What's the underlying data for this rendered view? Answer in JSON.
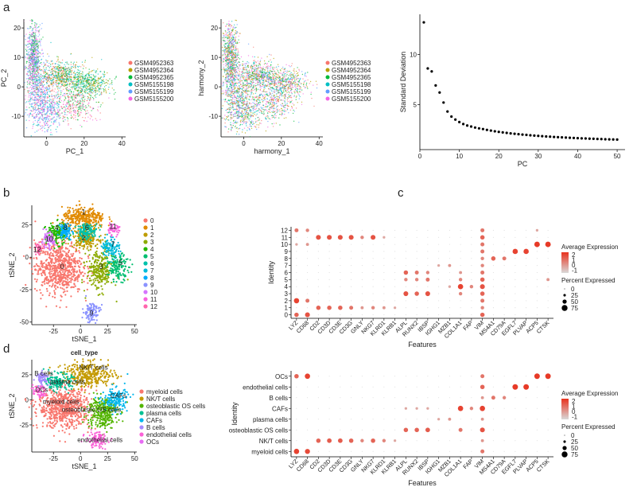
{
  "panel_letters": [
    "a",
    "b",
    "c",
    "d"
  ],
  "colors": {
    "samples": [
      "#F8766D",
      "#B79F00",
      "#00BA38",
      "#00BFC4",
      "#619CFF",
      "#F564E3"
    ],
    "clusters": [
      "#F8766D",
      "#E18A00",
      "#BE9C00",
      "#8CAB00",
      "#24B700",
      "#00BE70",
      "#00C1AB",
      "#00BBDA",
      "#00ACFC",
      "#8B93FF",
      "#D575FE",
      "#F962DD",
      "#FF65AC"
    ],
    "celltypes": [
      "#F8766D",
      "#C49A00",
      "#53B400",
      "#00C094",
      "#00B6EB",
      "#A58AFF",
      "#FB61D7"
    ],
    "expr_low": "#d9d9d9",
    "expr_high": "#e8321e"
  },
  "chart_data": [
    {
      "id": "pca",
      "type": "scatter",
      "xlabel": "PC_1",
      "ylabel": "PC_2",
      "xlim": [
        -12,
        42
      ],
      "ylim": [
        -17,
        23
      ],
      "xticks": [
        "0",
        "20",
        "40"
      ],
      "yticks": [
        "20",
        "10",
        "0",
        "-10"
      ],
      "legend": [
        "GSM4952363",
        "GSM4952364",
        "GSM4952365",
        "GSM5155198",
        "GSM5155199",
        "GSM5155200"
      ]
    },
    {
      "id": "harmony",
      "type": "scatter",
      "xlabel": "harmony_1",
      "ylabel": "harmony_2",
      "xlim": [
        -12,
        42
      ],
      "ylim": [
        -17,
        23
      ],
      "xticks": [
        "0",
        "20",
        "40"
      ],
      "yticks": [
        "20",
        "10",
        "0",
        "-10"
      ],
      "legend": [
        "GSM4952363",
        "GSM4952364",
        "GSM4952365",
        "GSM5155198",
        "GSM5155199",
        "GSM5155200"
      ]
    },
    {
      "id": "elbow",
      "type": "scatter",
      "xlabel": "PC",
      "ylabel": "Standard Deviation",
      "xlim": [
        0,
        52
      ],
      "ylim": [
        0.5,
        14
      ],
      "xticks": [
        "0",
        "10",
        "20",
        "30",
        "40",
        "50"
      ],
      "yticks": [
        "10",
        "5"
      ],
      "x": [
        1,
        2,
        3,
        4,
        5,
        6,
        7,
        8,
        9,
        10,
        11,
        12,
        13,
        14,
        15,
        16,
        17,
        18,
        19,
        20,
        21,
        22,
        23,
        24,
        25,
        26,
        27,
        28,
        29,
        30,
        31,
        32,
        33,
        34,
        35,
        36,
        37,
        38,
        39,
        40,
        41,
        42,
        43,
        44,
        45,
        46,
        47,
        48,
        49,
        50
      ],
      "y": [
        13.2,
        8.6,
        8.3,
        6.9,
        6.2,
        5.2,
        4.3,
        3.8,
        3.5,
        3.25,
        3.05,
        2.9,
        2.8,
        2.7,
        2.62,
        2.55,
        2.47,
        2.4,
        2.33,
        2.27,
        2.22,
        2.17,
        2.12,
        2.08,
        2.04,
        2.0,
        1.97,
        1.93,
        1.9,
        1.87,
        1.84,
        1.81,
        1.79,
        1.76,
        1.74,
        1.72,
        1.7,
        1.68,
        1.66,
        1.64,
        1.62,
        1.61,
        1.59,
        1.58,
        1.56,
        1.55,
        1.53,
        1.52,
        1.51,
        1.5
      ]
    },
    {
      "id": "tsne_clusters",
      "type": "scatter",
      "xlabel": "tSNE_1",
      "ylabel": "tSNE_2",
      "xlim": [
        -45,
        52
      ],
      "ylim": [
        -52,
        40
      ],
      "xticks": [
        "-25",
        "0",
        "25",
        "50"
      ],
      "yticks": [
        "25",
        "0",
        "-25",
        "-50"
      ],
      "legend": [
        "0",
        "1",
        "2",
        "3",
        "4",
        "5",
        "6",
        "7",
        "8",
        "9",
        "10",
        "11",
        "12"
      ],
      "cluster_labels": [
        "0",
        "1",
        "2",
        "3",
        "4",
        "5",
        "6",
        "7",
        "8",
        "9",
        "10",
        "11",
        "12"
      ]
    },
    {
      "id": "dotplot_clusters",
      "type": "dotplot",
      "xlabel": "Features",
      "ylabel": "Identity",
      "features": [
        "LYZ",
        "CD68",
        "CD2",
        "CD3D",
        "CD3E",
        "CD3G",
        "GNLY",
        "NKG7",
        "KLRD1",
        "KLRB1",
        "ALPL",
        "RUNX2",
        "IBSP",
        "IGHG1",
        "MZB1",
        "COL1A1",
        "FAP",
        "VIM",
        "MS4A1",
        "CD79A",
        "EGFL7",
        "PLVAP",
        "ACP5",
        "CTSK"
      ],
      "identities": [
        "12",
        "11",
        "10",
        "9",
        "8",
        "7",
        "6",
        "5",
        "4",
        "3",
        "2",
        "1",
        "0"
      ],
      "legend_title_1": "Average Expression",
      "legend_ticks_1": [
        "2",
        "1",
        "0",
        "-1"
      ],
      "legend_title_2": "Percent Expressed",
      "legend_sizes": [
        "0",
        "25",
        "50",
        "75"
      ],
      "markers_by_identity": {
        "12": {
          "LYZ": 0.6,
          "CD68": 0.5,
          "VIM": 0.6,
          "ACP5": 0.3
        },
        "11": {
          "CD2": 0.8,
          "CD3D": 0.8,
          "CD3E": 0.8,
          "CD3G": 0.8,
          "GNLY": 0.5,
          "NKG7": 0.8,
          "KLRD1": 0.3,
          "VIM": 0.7
        },
        "10": {
          "LYZ": 0.3,
          "CD68": 0.4,
          "VIM": 0.6,
          "ACP5": 0.95,
          "CTSK": 0.95
        },
        "9": {
          "VIM": 0.6,
          "EGFL7": 0.9,
          "PLVAP": 0.9
        },
        "8": {
          "VIM": 0.5,
          "MS4A1": 0.7,
          "CD79A": 0.6
        },
        "7": {
          "VIM": 0.5,
          "MZB1": 0.4,
          "IGHG1": 0.3
        },
        "6": {
          "ALPL": 0.7,
          "RUNX2": 0.6,
          "IBSP": 0.5,
          "VIM": 0.6,
          "COL1A1": 0.4
        },
        "5": {
          "ALPL": 0.5,
          "RUNX2": 0.5,
          "IBSP": 0.6,
          "COL1A1": 0.5,
          "VIM": 0.7,
          "CTSK": 0.4
        },
        "4": {
          "COL1A1": 0.9,
          "FAP": 0.5,
          "VIM": 0.8,
          "MZB1": 0.3
        },
        "3": {
          "ALPL": 0.8,
          "RUNX2": 0.7,
          "IBSP": 0.8,
          "COL1A1": 0.5,
          "VIM": 0.7
        },
        "2": {
          "LYZ": 0.9,
          "CD68": 0.6,
          "VIM": 0.6
        },
        "1": {
          "CD2": 0.7,
          "CD3D": 0.7,
          "CD3E": 0.7,
          "CD3G": 0.6,
          "NKG7": 0.5,
          "GNLY": 0.4,
          "KLRD1": 0.4,
          "KLRB1": 0.3,
          "VIM": 0.5
        },
        "0": {
          "LYZ": 0.7,
          "CD68": 0.8,
          "VIM": 0.7
        }
      }
    },
    {
      "id": "tsne_celltypes",
      "type": "scatter",
      "title": "cell_type",
      "xlabel": "tSNE_1",
      "ylabel": "tSNE_2",
      "xlim": [
        -45,
        52
      ],
      "ylim": [
        -52,
        40
      ],
      "xticks": [
        "-25",
        "0",
        "25",
        "50"
      ],
      "yticks": [
        "25",
        "0",
        "-25"
      ],
      "legend": [
        "myeloid cells",
        "NK/T cells",
        "osteoblastic OS cells",
        "plasma cells",
        "CAFs",
        "B cells",
        "endothelial cells",
        "OCs"
      ],
      "cluster_labels": [
        "NK/T cells",
        "B cells",
        "plasma cells",
        "OCs",
        "myeloid cells",
        "CAFs",
        "osteoblastic OS cells",
        "endothelial cells"
      ]
    },
    {
      "id": "dotplot_celltypes",
      "type": "dotplot",
      "xlabel": "Features",
      "ylabel": "Identity",
      "features": [
        "LYZ",
        "CD68",
        "CD2",
        "CD3D",
        "CD3E",
        "CD3G",
        "GNLY",
        "NKG7",
        "KLRD1",
        "KLRB1",
        "ALPL",
        "RUNX2",
        "IBSP",
        "IGHG1",
        "MZB1",
        "COL1A1",
        "FAP",
        "VIM",
        "MS4A1",
        "CD79A",
        "EGFL7",
        "PLVAP",
        "ACP5",
        "CTSK"
      ],
      "identities": [
        "OCs",
        "endothelial cells",
        "B cells",
        "CAFs",
        "plasma cells",
        "osteoblastic OS cells",
        "NK/T cells",
        "myeloid cells"
      ],
      "legend_title_1": "Average Expression",
      "legend_ticks_1": [
        "2",
        "1",
        "0",
        "-1"
      ],
      "legend_title_2": "Percent Expressed",
      "legend_sizes": [
        "0",
        "25",
        "50",
        "75"
      ],
      "markers_by_identity": {
        "OCs": {
          "LYZ": 0.7,
          "CD68": 0.9,
          "VIM": 0.6,
          "ACP5": 0.95,
          "CTSK": 0.95
        },
        "endothelial cells": {
          "VIM": 0.7,
          "EGFL7": 0.95,
          "PLVAP": 0.95
        },
        "B cells": {
          "MS4A1": 0.6,
          "CD79A": 0.5,
          "VIM": 0.4
        },
        "CAFs": {
          "COL1A1": 0.9,
          "FAP": 0.5,
          "VIM": 0.9,
          "ALPL": 0.3,
          "RUNX2": 0.3,
          "IBSP": 0.3
        },
        "plasma cells": {
          "IGHG1": 0.3,
          "MZB1": 0.4,
          "VIM": 0.4
        },
        "osteoblastic OS cells": {
          "ALPL": 0.7,
          "RUNX2": 0.7,
          "IBSP": 0.75,
          "COL1A1": 0.6,
          "VIM": 0.8
        },
        "NK/T cells": {
          "CD2": 0.7,
          "CD3D": 0.75,
          "CD3E": 0.75,
          "CD3G": 0.7,
          "GNLY": 0.5,
          "NKG7": 0.7,
          "KLRD1": 0.5,
          "KLRB1": 0.3,
          "VIM": 0.4
        },
        "myeloid cells": {
          "LYZ": 0.9,
          "CD68": 0.85,
          "VIM": 0.6
        }
      }
    }
  ]
}
